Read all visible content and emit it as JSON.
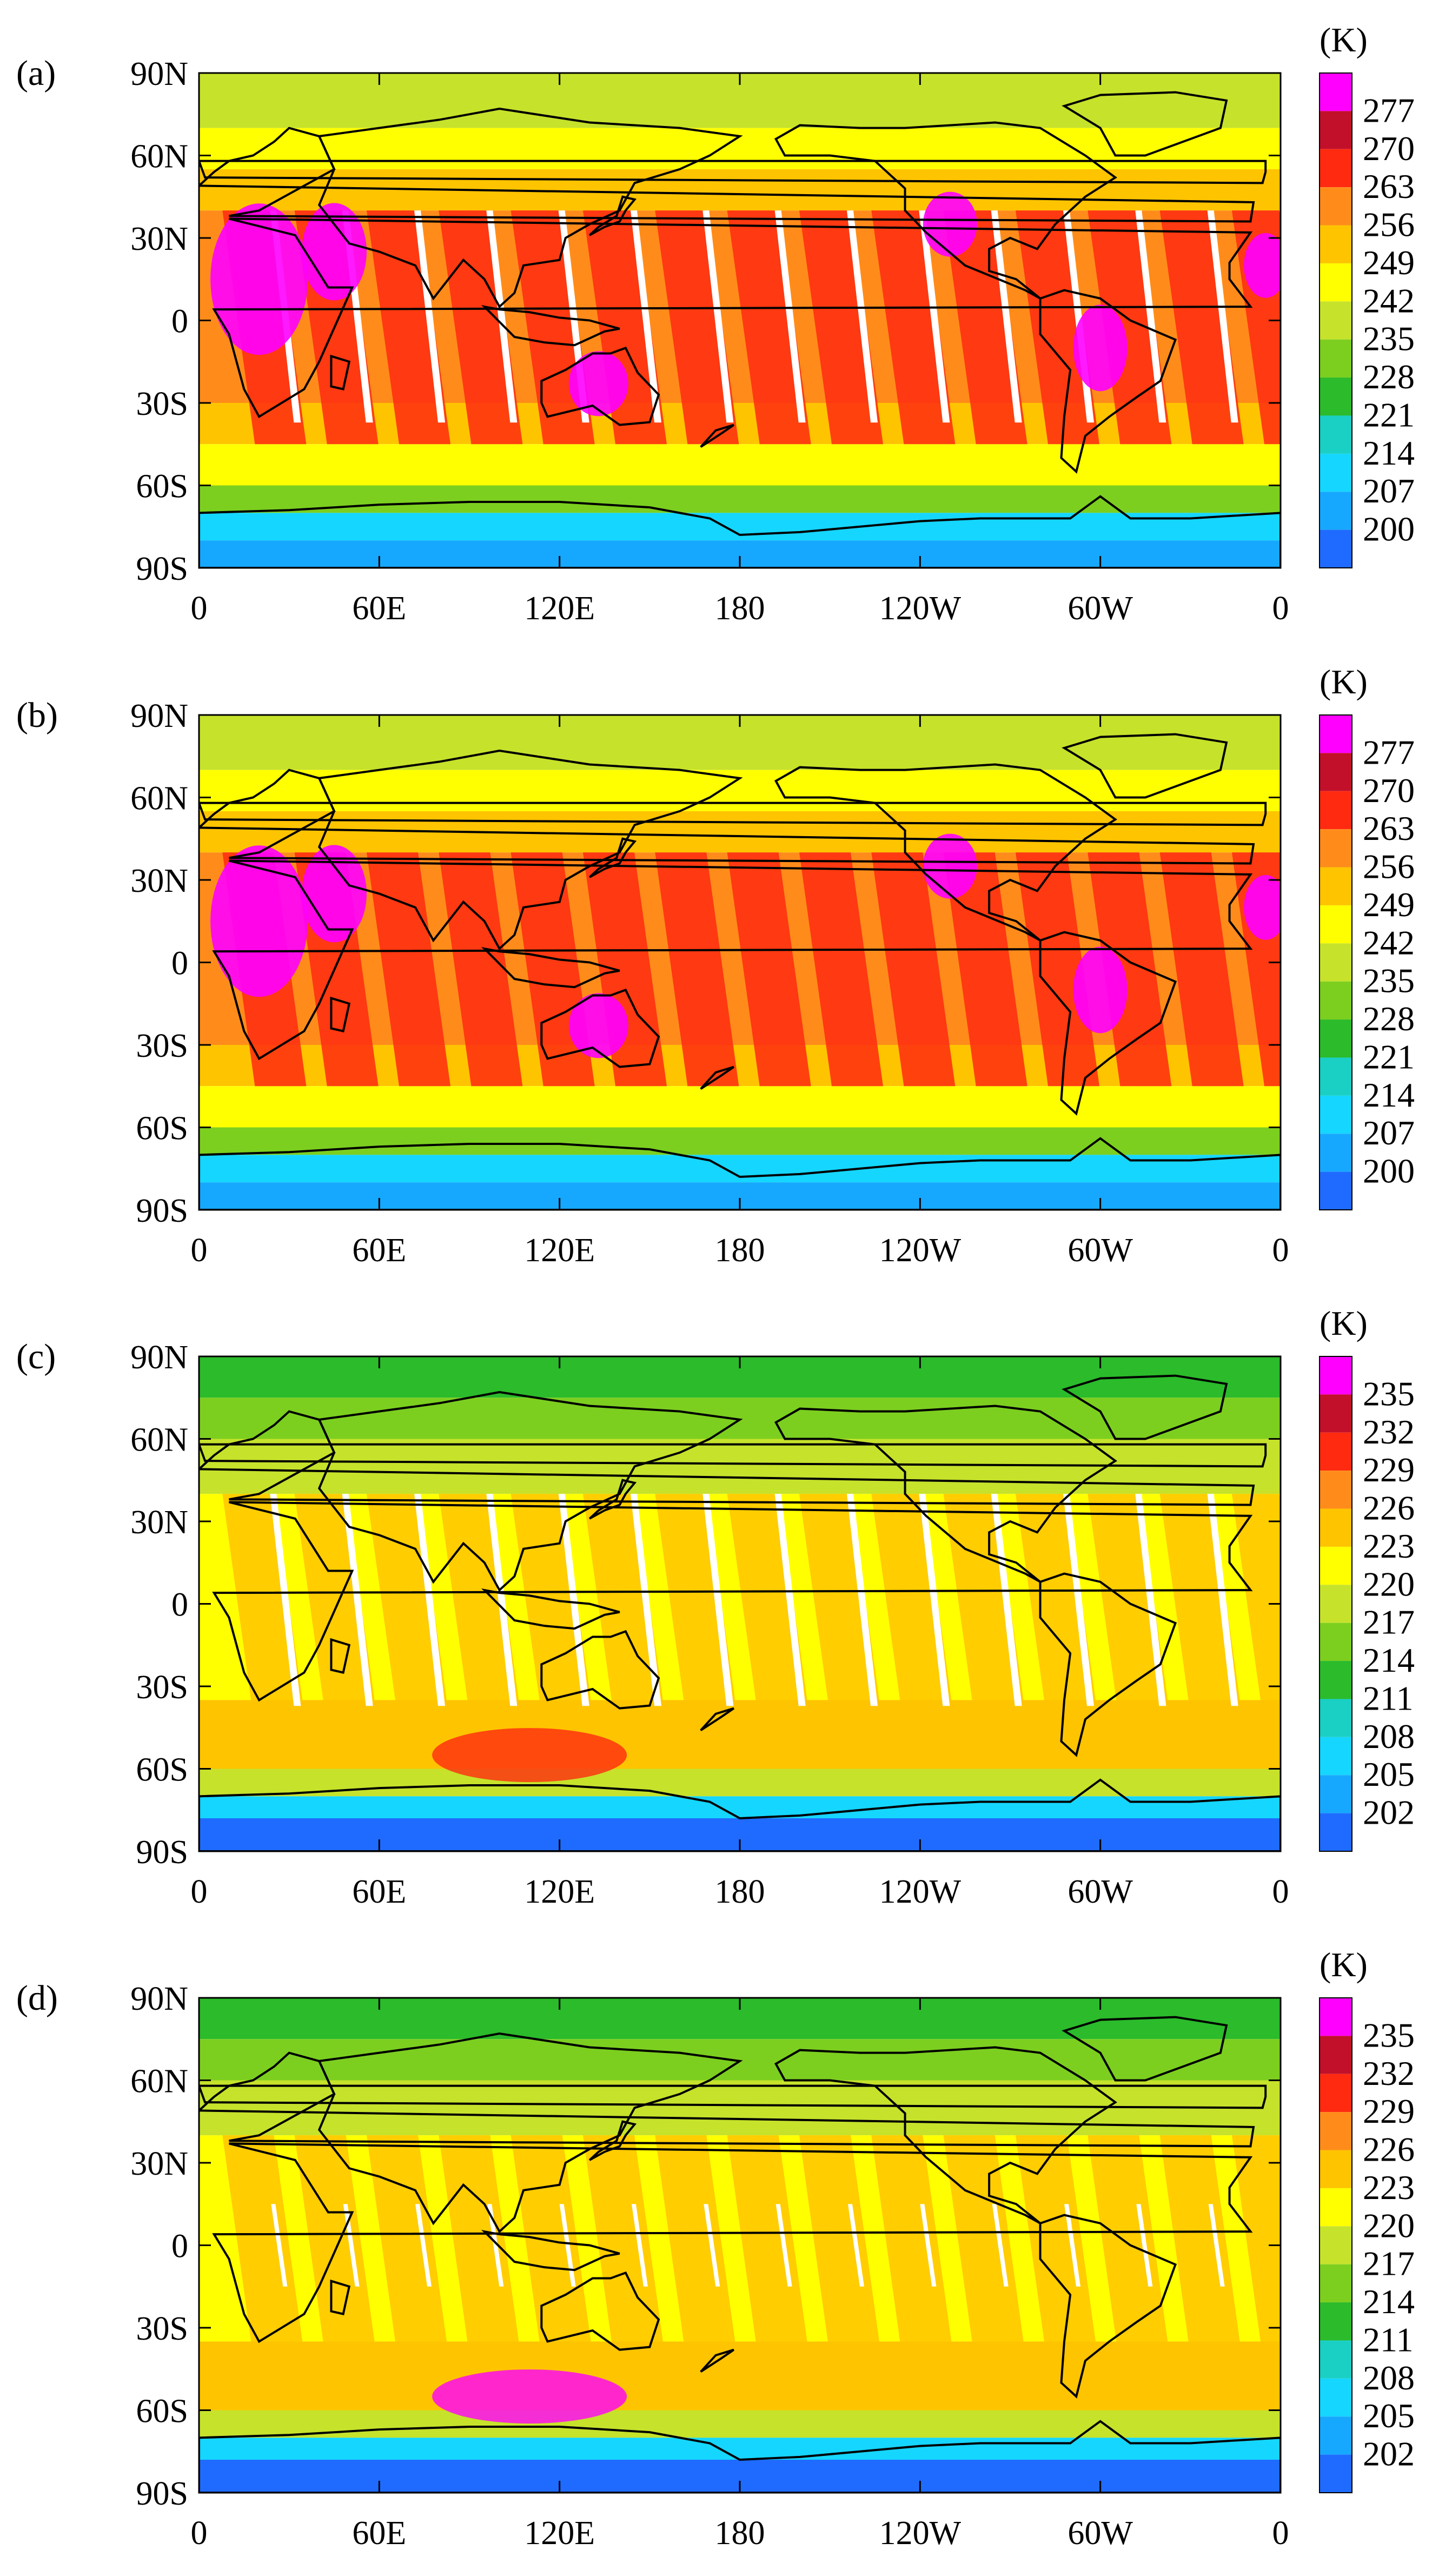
{
  "figure": {
    "description_free": true,
    "lat_ticks": [
      "90N",
      "60N",
      "30N",
      "0",
      "30S",
      "60S",
      "90S"
    ],
    "lon_ticks": [
      "0",
      "60E",
      "120E",
      "180",
      "120W",
      "60W",
      "0"
    ],
    "colors": [
      "#1f6bff",
      "#16a8ff",
      "#15d6ff",
      "#1ad0c4",
      "#2bbb2b",
      "#7ccf1f",
      "#c6e22b",
      "#ffff00",
      "#ffc400",
      "#ff8c1a",
      "#ff2a10",
      "#c2102a",
      "#ff00ff"
    ]
  },
  "panels": [
    {
      "label": "(a)",
      "unit": "(K)",
      "colorbar": [
        "277",
        "270",
        "263",
        "256",
        "249",
        "242",
        "235",
        "228",
        "221",
        "214",
        "207",
        "200"
      ],
      "style": "warm"
    },
    {
      "label": "(b)",
      "unit": "(K)",
      "colorbar": [
        "277",
        "270",
        "263",
        "256",
        "249",
        "242",
        "235",
        "228",
        "221",
        "214",
        "207",
        "200"
      ],
      "style": "warm-filled"
    },
    {
      "label": "(c)",
      "unit": "(K)",
      "colorbar": [
        "235",
        "232",
        "229",
        "226",
        "223",
        "220",
        "217",
        "214",
        "211",
        "208",
        "205",
        "202"
      ],
      "style": "cool"
    },
    {
      "label": "(d)",
      "unit": "(K)",
      "colorbar": [
        "235",
        "232",
        "229",
        "226",
        "223",
        "220",
        "217",
        "214",
        "211",
        "208",
        "205",
        "202"
      ],
      "style": "cool-filled"
    }
  ]
}
